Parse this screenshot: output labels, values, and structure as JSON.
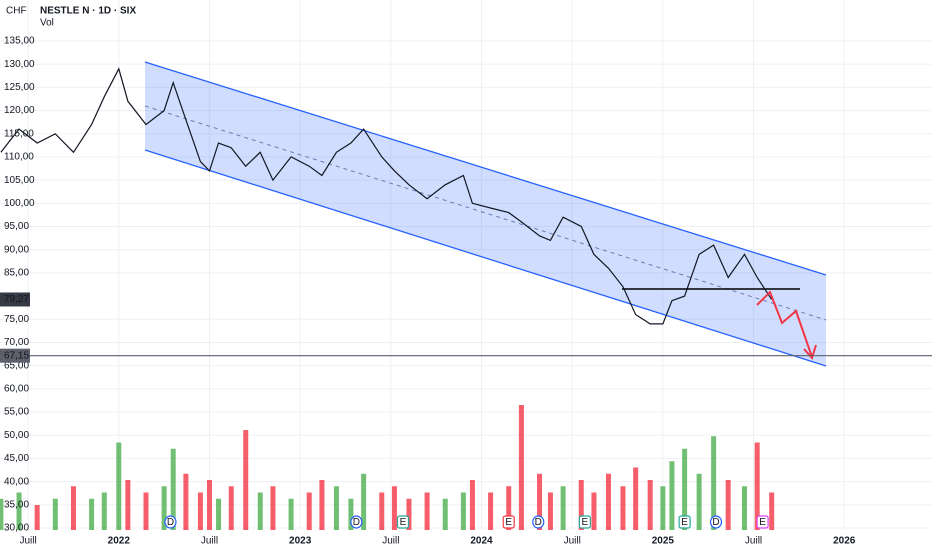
{
  "chart_data": {
    "type": "line",
    "header": {
      "currency": "CHF",
      "title": "NESTLE N · 1D · SIX",
      "volume_label": "Vol"
    },
    "x": [
      2021.35,
      2021.45,
      2021.55,
      2021.65,
      2021.75,
      2021.85,
      2021.92,
      2022.0,
      2022.05,
      2022.15,
      2022.25,
      2022.3,
      2022.37,
      2022.45,
      2022.5,
      2022.55,
      2022.62,
      2022.7,
      2022.78,
      2022.85,
      2022.95,
      2023.05,
      2023.12,
      2023.2,
      2023.28,
      2023.35,
      2023.45,
      2023.52,
      2023.6,
      2023.7,
      2023.8,
      2023.9,
      2023.95,
      2024.05,
      2024.15,
      2024.22,
      2024.32,
      2024.38,
      2024.45,
      2024.55,
      2024.62,
      2024.7,
      2024.78,
      2024.85,
      2024.93,
      2025.0,
      2025.05,
      2025.12,
      2025.2,
      2025.28,
      2025.36,
      2025.45,
      2025.52,
      2025.6
    ],
    "series": [
      {
        "color": "#131722",
        "values": [
          111,
          116,
          113,
          115,
          111,
          117,
          123,
          129,
          122,
          117,
          120,
          126,
          118,
          109,
          107,
          113,
          112,
          108,
          111,
          105,
          110,
          108,
          106,
          111,
          113,
          116,
          110,
          107,
          104,
          101,
          104,
          106,
          100,
          99,
          98,
          96,
          93,
          92,
          97,
          95,
          89,
          86,
          82,
          76,
          74,
          74,
          79,
          80,
          89,
          91,
          84,
          89,
          84,
          79.27
        ]
      },
      {
        "type": "bar",
        "axis": "y2",
        "up_color": "#4caf50",
        "down_color": "#f23645",
        "values": [
          5,
          6,
          4,
          5,
          7,
          5,
          6,
          14,
          8,
          6,
          7,
          13,
          9,
          6,
          8,
          5,
          7,
          16,
          6,
          7,
          5,
          6,
          8,
          7,
          5,
          9,
          6,
          7,
          5,
          6,
          5,
          6,
          8,
          6,
          7,
          20,
          9,
          6,
          7,
          8,
          6,
          9,
          7,
          10,
          8,
          7,
          11,
          13,
          9,
          15,
          8,
          7,
          14,
          6
        ]
      }
    ],
    "xlim": [
      2021.345,
      2026.484
    ],
    "xticks": [
      {
        "value": 2021.5,
        "label": "Juill"
      },
      2022,
      {
        "value": 2022.5,
        "label": "Juill"
      },
      2023,
      {
        "value": 2023.5,
        "label": "Juill"
      },
      2024,
      {
        "value": 2024.5,
        "label": "Juill"
      },
      2025,
      {
        "value": 2025.5,
        "label": "Juill"
      },
      2026
    ],
    "ylim": [
      29.57,
      137.37
    ],
    "yticks": [
      {
        "value": 135,
        "label": "135,00"
      },
      {
        "value": 130,
        "label": "130,00"
      },
      {
        "value": 125,
        "label": "125,00"
      },
      {
        "value": 120,
        "label": "120,00"
      },
      {
        "value": 115,
        "label": "115,00"
      },
      {
        "value": 110,
        "label": "110,00"
      },
      {
        "value": 105,
        "label": "105,00"
      },
      {
        "value": 100,
        "label": "100,00"
      },
      {
        "value": 95,
        "label": "95,00"
      },
      {
        "value": 90,
        "label": "90,00"
      },
      {
        "value": 85,
        "label": "85,00"
      },
      {
        "value": 75,
        "label": "75,00"
      },
      {
        "value": 70,
        "label": "70,00"
      },
      {
        "value": 65,
        "label": "65,00"
      },
      {
        "value": 60,
        "label": "60,00"
      },
      {
        "value": 55,
        "label": "55,00"
      },
      {
        "value": 50,
        "label": "50,00"
      },
      {
        "value": 45,
        "label": "45,00"
      },
      {
        "value": 40,
        "label": "40,00"
      },
      {
        "value": 35,
        "label": "35,00"
      },
      {
        "value": 30,
        "label": "30,00"
      }
    ],
    "y2lim": [
      0,
      80
    ],
    "grid": true,
    "price_marker": {
      "value": 79.27,
      "label": "79,27",
      "color": "#363a45"
    },
    "level_line": {
      "value": 67.15,
      "label": "67,15",
      "color": "#5d606b"
    },
    "events": [
      {
        "label": "D",
        "x": 2022.285,
        "color": "#2962ff"
      },
      {
        "label": "D",
        "x": 2023.31,
        "color": "#2962ff"
      },
      {
        "label": "E",
        "x": 2023.567,
        "color": "#26a69a"
      },
      {
        "label": "E",
        "x": 2024.15,
        "color": "#f23645"
      },
      {
        "label": "D",
        "x": 2024.313,
        "color": "#2962ff"
      },
      {
        "label": "E",
        "x": 2024.57,
        "color": "#26a69a"
      },
      {
        "label": "E",
        "x": 2025.12,
        "color": "#26a69a"
      },
      {
        "label": "D",
        "x": 2025.293,
        "color": "#2962ff"
      },
      {
        "label": "E",
        "x": 2025.55,
        "color": "#e040fb"
      }
    ]
  }
}
